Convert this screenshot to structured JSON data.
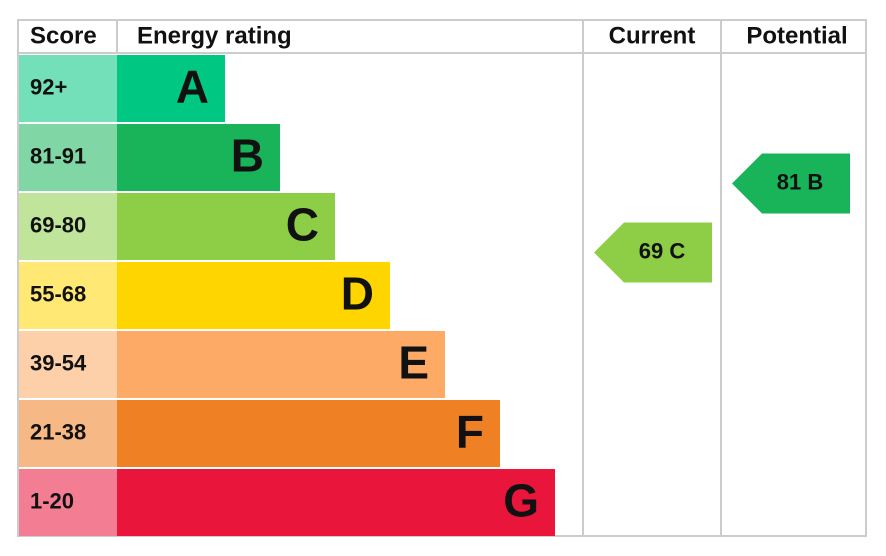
{
  "header": {
    "score": "Score",
    "energy_rating": "Energy rating",
    "current": "Current",
    "potential": "Potential"
  },
  "bands": [
    {
      "score": "92+",
      "letter": "A",
      "color": "#00c781"
    },
    {
      "score": "81-91",
      "letter": "B",
      "color": "#19b459"
    },
    {
      "score": "69-80",
      "letter": "C",
      "color": "#8dce46"
    },
    {
      "score": "55-68",
      "letter": "D",
      "color": "#ffd500"
    },
    {
      "score": "39-54",
      "letter": "E",
      "color": "#fcaa65"
    },
    {
      "score": "21-38",
      "letter": "F",
      "color": "#ef8023"
    },
    {
      "score": "1-20",
      "letter": "G",
      "color": "#e9153b"
    }
  ],
  "current": {
    "label": "69 C"
  },
  "potential": {
    "label": "81 B"
  }
}
